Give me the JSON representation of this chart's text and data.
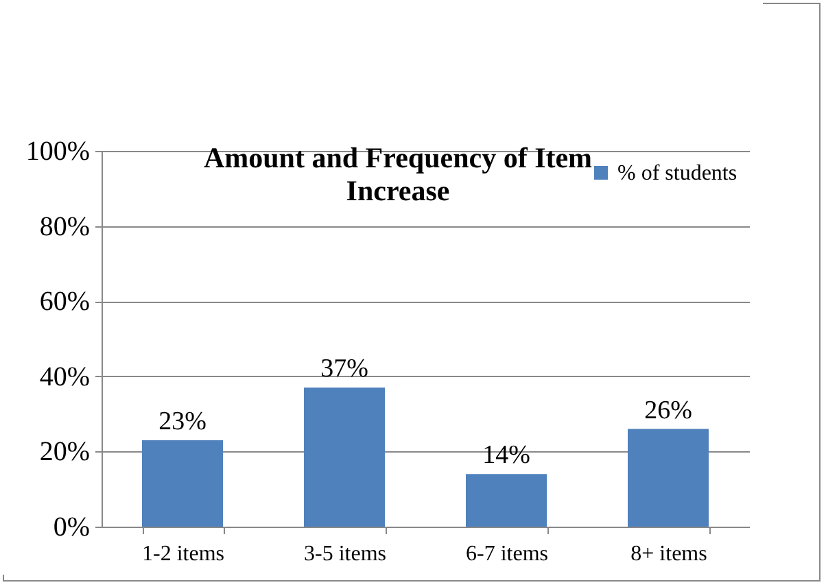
{
  "chart_data": {
    "type": "bar",
    "title": "Amount and Frequency of Item Increase",
    "categories": [
      "1-2 items",
      "3-5 items",
      "6-7 items",
      "8+ items"
    ],
    "series": [
      {
        "name": "% of students",
        "color": "#4f81bd",
        "values": [
          23,
          37,
          14,
          26
        ],
        "value_labels": [
          "23%",
          "37%",
          "14%",
          "26%"
        ]
      }
    ],
    "ylim": [
      0,
      100
    ],
    "yticks": [
      {
        "value": 0,
        "label": "0%"
      },
      {
        "value": 20,
        "label": "20%"
      },
      {
        "value": 40,
        "label": "40%"
      },
      {
        "value": 60,
        "label": "60%"
      },
      {
        "value": 80,
        "label": "80%"
      },
      {
        "value": 100,
        "label": "100%"
      }
    ],
    "grid": "y",
    "legend": "top right"
  }
}
